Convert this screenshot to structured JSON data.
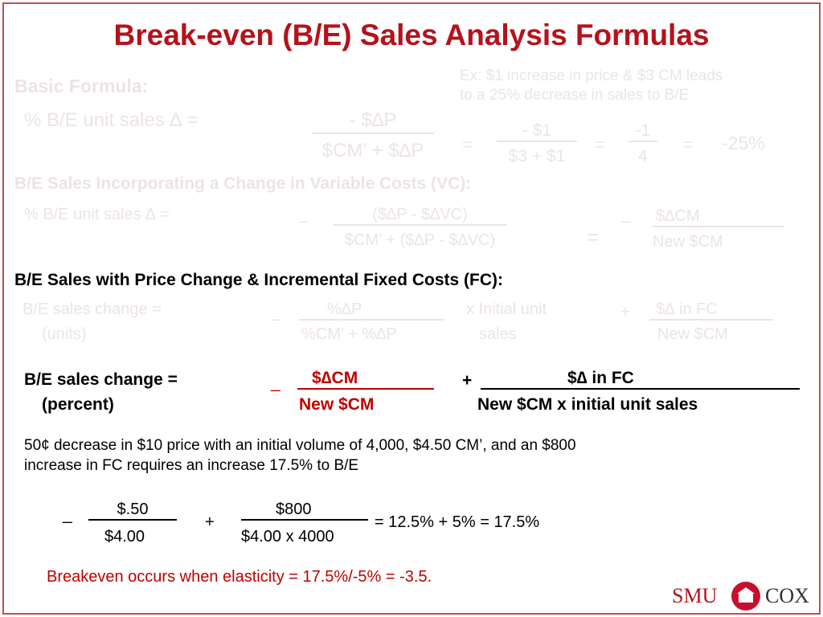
{
  "header": {
    "title": "Break-even (B/E) Sales Analysis Formulas"
  },
  "basic": {
    "heading": "Basic Formula:",
    "label": "% B/E unit sales ∆ =",
    "numerator": "- $∆P",
    "denominator": "$CM’ + $∆P",
    "example": {
      "lines": [
        "Ex: $1 increase in price & $3 CM leads",
        "to a 25% decrease in sales to B/E"
      ],
      "eq1": "=",
      "numerator1": "- $1",
      "denominator1": "$3 + $1",
      "eq2": "=",
      "numerator2": "-1",
      "denominator2": "4",
      "eq3": "=",
      "result": "-25%"
    }
  },
  "vc": {
    "heading": "B/E Sales Incorporating a Change in Variable Costs (VC):",
    "label": "% B/E unit sales ∆ =",
    "minus1": "_",
    "numerator1": "($∆P - $∆VC)",
    "denominator1": "$CM’ + ($∆P - $∆VC)",
    "eq": "=",
    "minus2": "_",
    "numerator2": "$∆CM",
    "denominator2": "New $CM"
  },
  "fc": {
    "heading": "B/E Sales with Price Change & Incremental Fixed Costs (FC):",
    "units": {
      "label": "B/E sales change =",
      "sublabel": "(units)",
      "minus": "_",
      "numerator1": "%∆P",
      "denominator1": "%CM’ + %∆P",
      "times": "x  Initial unit",
      "times2": "sales",
      "plus": "+",
      "numerator2": "$∆ in FC",
      "denominator2": "New $CM"
    },
    "percent": {
      "label": "B/E sales change =",
      "sublabel": "(percent)",
      "minus": "_",
      "numerator1": "$∆CM",
      "denominator1": "New $CM",
      "plus": "+",
      "numerator2": "$∆ in FC",
      "denominator2": "New $CM x initial unit sales"
    }
  },
  "example": {
    "lines": [
      "50¢ decrease in $10 price with an initial volume of 4,000, $4.50 CM’, and an $800",
      "increase in FC requires an increase 17.5% to B/E"
    ],
    "minus": "_",
    "numerator1": "$.50",
    "denominator1": "$4.00",
    "plus": "+",
    "numerator2": "$800",
    "denominator2": "$4.00 x 4000",
    "result": "= 12.5% + 5% = 17.5%",
    "conclusion": "Breakeven occurs when elasticity = 17.5%/-5% = -3.5."
  },
  "logo": {
    "left": "SMU",
    "right": "COX"
  }
}
